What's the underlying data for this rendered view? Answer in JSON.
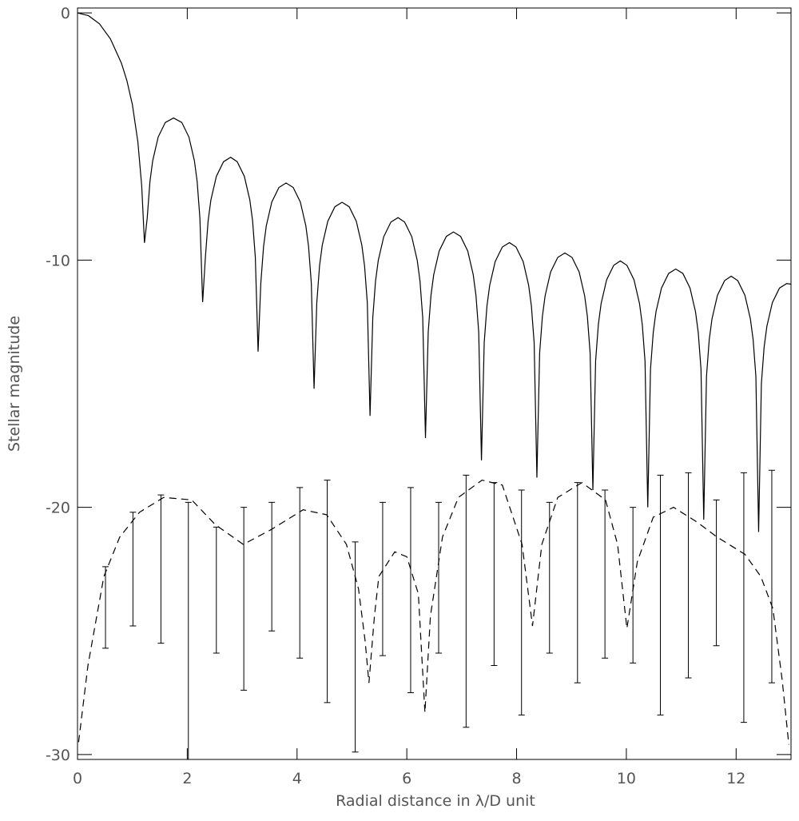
{
  "chart_data": {
    "type": "line",
    "xlabel": "Radial distance in λ/D unit",
    "ylabel": "Stellar magnitude",
    "xlim": [
      0,
      13
    ],
    "ylim": [
      -30.2,
      0.2
    ],
    "xticks": [
      0,
      2,
      4,
      6,
      8,
      10,
      12
    ],
    "yticks": [
      0,
      -10,
      -20,
      -30
    ],
    "color": "#000000",
    "series": [
      {
        "style": "solid",
        "x": [
          0,
          0.2,
          0.4,
          0.6,
          0.8,
          0.9,
          1.0,
          1.1,
          1.17,
          1.22,
          1.27,
          1.32,
          1.37,
          1.47,
          1.6,
          1.75,
          1.9,
          2.03,
          2.13,
          2.18,
          2.23,
          2.28,
          2.33,
          2.38,
          2.43,
          2.53,
          2.66,
          2.79,
          2.91,
          3.04,
          3.14,
          3.19,
          3.24,
          3.29,
          3.34,
          3.39,
          3.44,
          3.54,
          3.67,
          3.8,
          3.93,
          4.06,
          4.16,
          4.21,
          4.26,
          4.31,
          4.36,
          4.41,
          4.46,
          4.56,
          4.69,
          4.82,
          4.95,
          5.08,
          5.18,
          5.23,
          5.28,
          5.33,
          5.38,
          5.43,
          5.48,
          5.58,
          5.71,
          5.84,
          5.96,
          6.09,
          6.19,
          6.24,
          6.29,
          6.34,
          6.39,
          6.44,
          6.49,
          6.59,
          6.72,
          6.85,
          6.98,
          7.11,
          7.21,
          7.26,
          7.31,
          7.36,
          7.41,
          7.46,
          7.51,
          7.61,
          7.74,
          7.87,
          7.99,
          8.12,
          8.22,
          8.27,
          8.32,
          8.37,
          8.42,
          8.47,
          8.52,
          8.62,
          8.75,
          8.88,
          9.01,
          9.14,
          9.24,
          9.29,
          9.34,
          9.39,
          9.44,
          9.49,
          9.54,
          9.64,
          9.77,
          9.89,
          10.01,
          10.14,
          10.24,
          10.29,
          10.34,
          10.39,
          10.44,
          10.49,
          10.54,
          10.64,
          10.77,
          10.9,
          11.03,
          11.16,
          11.26,
          11.31,
          11.36,
          11.41,
          11.46,
          11.51,
          11.56,
          11.66,
          11.79,
          11.91,
          12.03,
          12.16,
          12.26,
          12.31,
          12.36,
          12.41,
          12.46,
          12.51,
          12.56,
          12.66,
          12.79,
          12.92,
          13.0
        ],
        "values": [
          0,
          -0.11,
          -0.44,
          -1.05,
          -2.03,
          -2.74,
          -3.71,
          -5.22,
          -7.0,
          -9.3,
          -8.3,
          -6.82,
          -5.98,
          -5.02,
          -4.43,
          -4.25,
          -4.43,
          -5.02,
          -5.98,
          -6.82,
          -8.3,
          -11.7,
          -9.89,
          -8.41,
          -7.57,
          -6.61,
          -6.02,
          -5.84,
          -6.02,
          -6.61,
          -7.57,
          -8.41,
          -9.89,
          -13.7,
          -10.93,
          -9.45,
          -8.61,
          -7.65,
          -7.06,
          -6.88,
          -7.06,
          -7.65,
          -8.61,
          -9.45,
          -10.93,
          -15.2,
          -11.71,
          -10.23,
          -9.39,
          -8.43,
          -7.84,
          -7.66,
          -7.84,
          -8.43,
          -9.39,
          -10.23,
          -11.71,
          -16.3,
          -12.33,
          -10.85,
          -10.01,
          -9.05,
          -8.46,
          -8.28,
          -8.46,
          -9.05,
          -10.01,
          -10.85,
          -12.33,
          -17.2,
          -12.91,
          -11.43,
          -10.59,
          -9.63,
          -9.04,
          -8.86,
          -9.04,
          -9.63,
          -10.59,
          -11.43,
          -12.91,
          -18.1,
          -13.34,
          -11.86,
          -11.02,
          -10.06,
          -9.47,
          -9.29,
          -9.47,
          -10.06,
          -11.02,
          -11.86,
          -13.34,
          -18.8,
          -13.76,
          -12.28,
          -11.44,
          -10.48,
          -9.89,
          -9.71,
          -9.89,
          -10.48,
          -11.44,
          -12.28,
          -13.76,
          -19.3,
          -14.08,
          -12.6,
          -11.76,
          -10.8,
          -10.21,
          -10.03,
          -10.21,
          -10.8,
          -11.76,
          -12.6,
          -14.08,
          -20.0,
          -14.41,
          -12.93,
          -12.09,
          -11.13,
          -10.54,
          -10.36,
          -10.54,
          -11.13,
          -12.09,
          -12.93,
          -14.41,
          -20.5,
          -14.7,
          -13.22,
          -12.38,
          -11.42,
          -10.83,
          -10.65,
          -10.83,
          -11.42,
          -12.38,
          -13.22,
          -14.7,
          -21.0,
          -15.0,
          -13.52,
          -12.68,
          -11.72,
          -11.13,
          -10.95,
          -10.97
        ]
      },
      {
        "style": "dashed",
        "x": [
          0.02,
          0.19,
          0.48,
          0.77,
          1.13,
          1.57,
          2.08,
          2.51,
          3.02,
          3.53,
          4.11,
          4.54,
          4.9,
          5.12,
          5.24,
          5.31,
          5.41,
          5.49,
          5.78,
          6.0,
          6.21,
          6.33,
          6.43,
          6.65,
          6.94,
          7.37,
          7.74,
          8.1,
          8.29,
          8.46,
          8.75,
          9.19,
          9.62,
          9.84,
          10.01,
          10.2,
          10.49,
          10.86,
          11.29,
          11.65,
          12.16,
          12.45,
          12.67,
          12.84,
          12.96
        ],
        "values": [
          -29.5,
          -26.4,
          -22.8,
          -21.2,
          -20.2,
          -19.6,
          -19.7,
          -20.7,
          -21.5,
          -20.9,
          -20.1,
          -20.3,
          -21.5,
          -23.3,
          -25.4,
          -27.1,
          -24.4,
          -22.8,
          -21.8,
          -22.0,
          -23.5,
          -28.3,
          -24.4,
          -21.2,
          -19.6,
          -18.9,
          -19.1,
          -21.5,
          -24.8,
          -21.5,
          -19.6,
          -19.0,
          -19.7,
          -21.5,
          -24.9,
          -22.2,
          -20.4,
          -20.0,
          -20.6,
          -21.2,
          -21.9,
          -22.8,
          -24.1,
          -27.0,
          -29.6
        ]
      }
    ],
    "errorbars": {
      "x": [
        0.51,
        1.01,
        1.52,
        2.02,
        2.53,
        3.03,
        3.54,
        4.05,
        4.55,
        5.06,
        5.56,
        6.07,
        6.58,
        7.08,
        7.59,
        8.09,
        8.6,
        9.11,
        9.61,
        10.12,
        10.62,
        11.13,
        11.64,
        12.14,
        12.65
      ],
      "upper": [
        -22.4,
        -20.2,
        -19.5,
        -19.8,
        -20.8,
        -20.0,
        -19.8,
        -19.2,
        -18.9,
        -21.4,
        -19.8,
        -19.2,
        -19.8,
        -18.7,
        -19.0,
        -19.3,
        -19.8,
        -19.0,
        -19.3,
        -20.0,
        -18.7,
        -18.6,
        -19.7,
        -18.6,
        -18.5
      ],
      "lower": [
        -25.7,
        -24.8,
        -25.5,
        -30.2,
        -25.9,
        -27.4,
        -25.0,
        -26.1,
        -27.9,
        -29.9,
        -26.0,
        -27.5,
        -25.9,
        -28.9,
        -26.4,
        -28.4,
        -25.9,
        -27.1,
        -26.1,
        -26.3,
        -28.4,
        -26.9,
        -25.6,
        -28.7,
        -27.1
      ]
    }
  }
}
